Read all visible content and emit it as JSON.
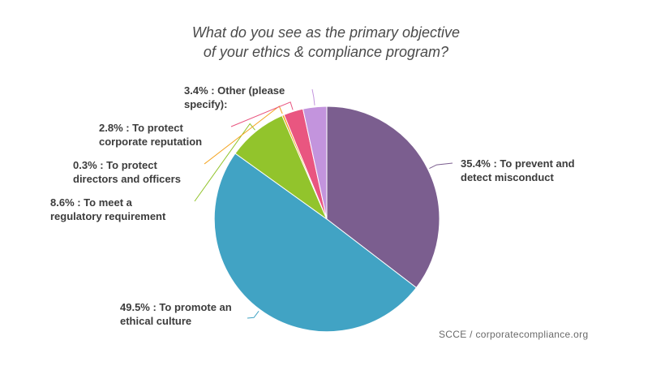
{
  "title_lines": [
    "What do you see as the primary objective",
    "of your ethics & compliance program?"
  ],
  "source": "SCCE / corporatecompliance.org",
  "chart_data": {
    "type": "pie",
    "slices": [
      {
        "label_lines": [
          "35.4% : To prevent and",
          "detect misconduct"
        ],
        "value": 35.4,
        "color": "#7b5e8f"
      },
      {
        "label_lines": [
          "49.5% : To promote an",
          "ethical culture"
        ],
        "value": 49.5,
        "color": "#41a3c4"
      },
      {
        "label_lines": [
          "8.6% : To meet a",
          "regulatory requirement"
        ],
        "value": 8.6,
        "color": "#92c42c"
      },
      {
        "label_lines": [
          "0.3% : To protect",
          "directors and officers"
        ],
        "value": 0.3,
        "color": "#f4a21c"
      },
      {
        "label_lines": [
          "2.8% : To protect",
          "corporate reputation"
        ],
        "value": 2.8,
        "color": "#e95680"
      },
      {
        "label_lines": [
          "3.4% : Other (please",
          "specify):"
        ],
        "value": 3.4,
        "color": "#c394dd"
      }
    ]
  }
}
